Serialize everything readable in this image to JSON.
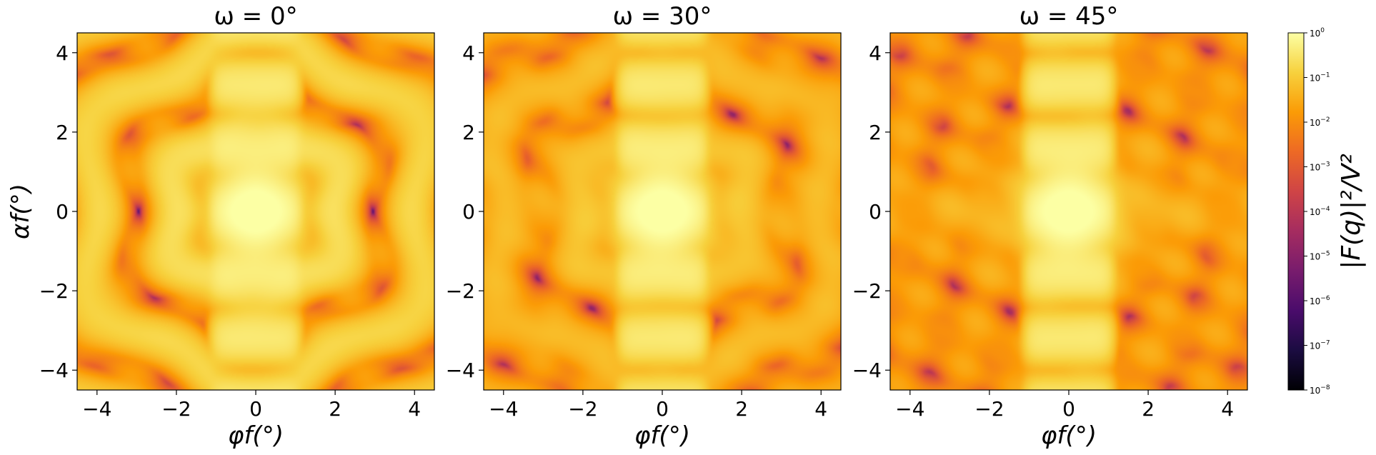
{
  "colors": {
    "colormap": "inferno",
    "stops": [
      "#000004",
      "#1b0c41",
      "#4a0c6b",
      "#781c6d",
      "#a52c60",
      "#cf4446",
      "#ed6925",
      "#fb9b06",
      "#f7d13d",
      "#fcffa4"
    ]
  },
  "chart_data": [
    {
      "type": "heatmap",
      "title": "ω = 0°",
      "omega_deg": 0,
      "xlabel": "φf(°)",
      "ylabel": "αf(°)",
      "xlim": [
        -4.5,
        4.5
      ],
      "ylim": [
        -4.5,
        4.5
      ],
      "xticks": [
        "−4",
        "−2",
        "0",
        "2",
        "4"
      ],
      "yticks": [
        "−4",
        "−2",
        "0",
        "2",
        "4"
      ],
      "color_scale": "log",
      "grid": false
    },
    {
      "type": "heatmap",
      "title": "ω = 30°",
      "omega_deg": 30,
      "xlabel": "φf(°)",
      "ylabel": "",
      "xlim": [
        -4.5,
        4.5
      ],
      "ylim": [
        -4.5,
        4.5
      ],
      "xticks": [
        "−4",
        "−2",
        "0",
        "2",
        "4"
      ],
      "yticks": [
        "−4",
        "−2",
        "0",
        "2",
        "4"
      ],
      "color_scale": "log",
      "grid": false
    },
    {
      "type": "heatmap",
      "title": "ω = 45°",
      "omega_deg": 45,
      "xlabel": "φf(°)",
      "ylabel": "",
      "xlim": [
        -4.5,
        4.5
      ],
      "ylim": [
        -4.5,
        4.5
      ],
      "xticks": [
        "−4",
        "−2",
        "0",
        "2",
        "4"
      ],
      "yticks": [
        "−4",
        "−2",
        "0",
        "2",
        "4"
      ],
      "color_scale": "log",
      "grid": false
    }
  ],
  "colorbar": {
    "label": "|F(q)|²/V²",
    "scale": "log",
    "range": [
      1e-08,
      1
    ],
    "ticks": [
      {
        "exp": 0,
        "base": "10",
        "sup": "0"
      },
      {
        "exp": -1,
        "base": "10",
        "sup": "−1"
      },
      {
        "exp": -2,
        "base": "10",
        "sup": "−2"
      },
      {
        "exp": -3,
        "base": "10",
        "sup": "−3"
      },
      {
        "exp": -4,
        "base": "10",
        "sup": "−4"
      },
      {
        "exp": -5,
        "base": "10",
        "sup": "−5"
      },
      {
        "exp": -6,
        "base": "10",
        "sup": "−6"
      },
      {
        "exp": -7,
        "base": "10",
        "sup": "−7"
      },
      {
        "exp": -8,
        "base": "10",
        "sup": "−8"
      }
    ]
  }
}
